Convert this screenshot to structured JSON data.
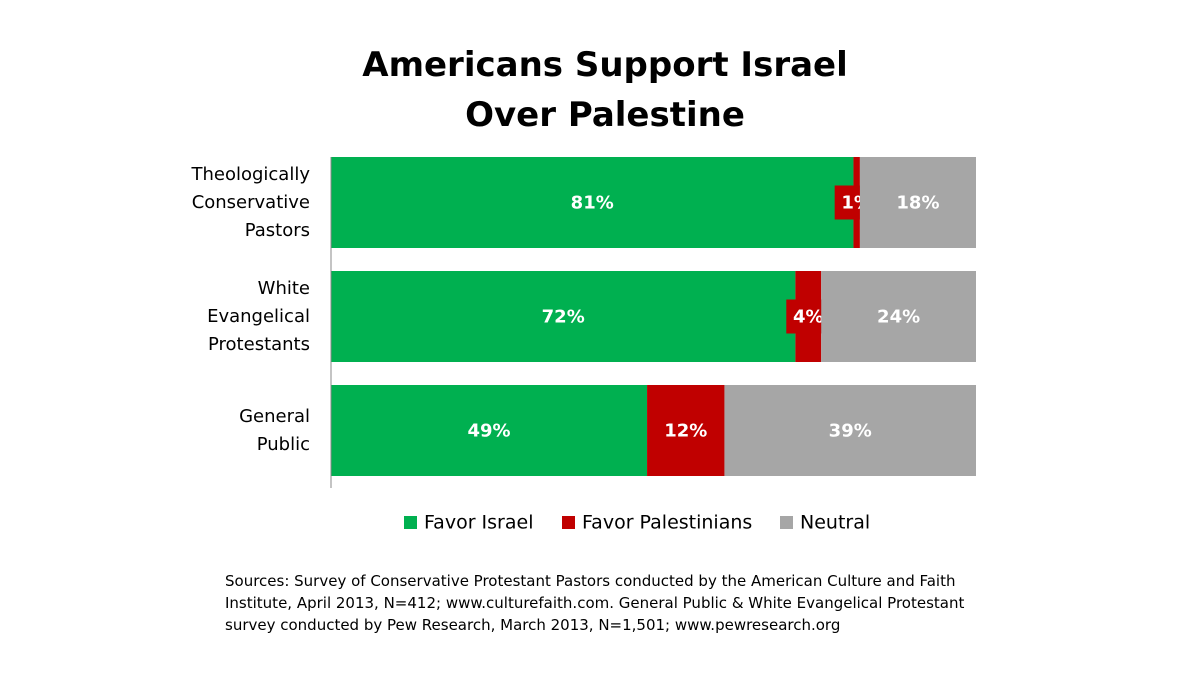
{
  "chart_data": {
    "type": "stacked_bar_horizontal",
    "title": "Americans Support Israel Over Palestine",
    "categories": [
      "Theologically Conservative Pastors",
      "White Evangelical Protestants",
      "General Public"
    ],
    "series": [
      {
        "name": "Favor Israel",
        "color": "#00b050",
        "values": [
          81,
          72,
          49
        ],
        "value_labels": [
          "81%",
          "72%",
          "49%"
        ]
      },
      {
        "name": "Favor Palestinians",
        "color": "#c00000",
        "values": [
          1,
          4,
          12
        ],
        "value_labels": [
          "1%",
          "4%",
          "12%"
        ]
      },
      {
        "name": "Neutral",
        "color": "#a6a6a6",
        "values": [
          18,
          24,
          39
        ],
        "value_labels": [
          "18%",
          "24%",
          "39%"
        ]
      }
    ],
    "xlim": [
      0,
      100
    ],
    "source": "Sources: Survey of Conservative Protestant Pastors conducted by the American Culture and Faith Institute, April 2013, N=412; www.culturefaith.com. General Public & White Evangelical Protestant survey conducted by Pew Research, March 2013, N=1,501; www.pewresearch.org"
  }
}
